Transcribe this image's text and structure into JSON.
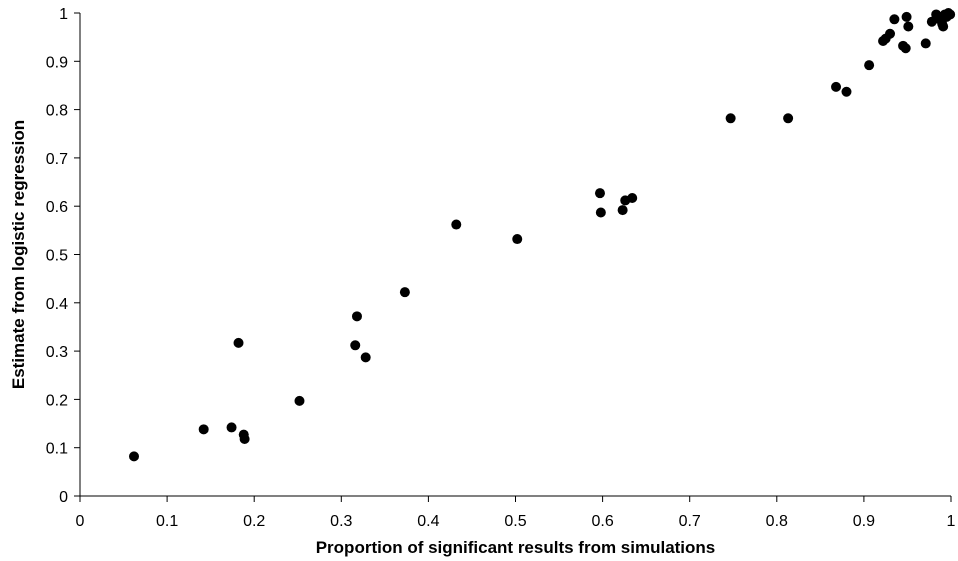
{
  "chart_data": {
    "type": "scatter",
    "title": "",
    "xlabel": "Proportion of significant results from simulations",
    "ylabel": "Estimate from logistic regression",
    "xlim": [
      0,
      1
    ],
    "ylim": [
      0,
      1
    ],
    "x_ticks": [
      "0",
      "0.1",
      "0.2",
      "0.3",
      "0.4",
      "0.5",
      "0.6",
      "0.7",
      "0.8",
      "0.9",
      "1"
    ],
    "y_ticks": [
      "0",
      "0.1",
      "0.2",
      "0.3",
      "0.4",
      "0.5",
      "0.6",
      "0.7",
      "0.8",
      "0.9",
      "1"
    ],
    "grid": false,
    "legend": false,
    "marker_color": "#000000",
    "series": [
      {
        "points": [
          [
            0.062,
            0.082
          ],
          [
            0.142,
            0.138
          ],
          [
            0.174,
            0.142
          ],
          [
            0.182,
            0.317
          ],
          [
            0.188,
            0.127
          ],
          [
            0.189,
            0.118
          ],
          [
            0.252,
            0.197
          ],
          [
            0.316,
            0.312
          ],
          [
            0.318,
            0.372
          ],
          [
            0.328,
            0.287
          ],
          [
            0.373,
            0.422
          ],
          [
            0.432,
            0.562
          ],
          [
            0.502,
            0.532
          ],
          [
            0.597,
            0.627
          ],
          [
            0.598,
            0.587
          ],
          [
            0.623,
            0.592
          ],
          [
            0.626,
            0.612
          ],
          [
            0.634,
            0.617
          ],
          [
            0.747,
            0.782
          ],
          [
            0.813,
            0.782
          ],
          [
            0.868,
            0.847
          ],
          [
            0.88,
            0.837
          ],
          [
            0.906,
            0.892
          ],
          [
            0.922,
            0.942
          ],
          [
            0.925,
            0.947
          ],
          [
            0.93,
            0.957
          ],
          [
            0.935,
            0.987
          ],
          [
            0.945,
            0.932
          ],
          [
            0.948,
            0.927
          ],
          [
            0.949,
            0.992
          ],
          [
            0.951,
            0.972
          ],
          [
            0.971,
            0.937
          ],
          [
            0.978,
            0.982
          ],
          [
            0.983,
            0.997
          ],
          [
            0.987,
            0.987
          ],
          [
            0.99,
            0.977
          ],
          [
            0.991,
            0.972
          ],
          [
            0.993,
            0.997
          ],
          [
            0.995,
            0.992
          ],
          [
            0.997,
            1.0
          ],
          [
            0.999,
            0.997
          ]
        ]
      }
    ]
  }
}
